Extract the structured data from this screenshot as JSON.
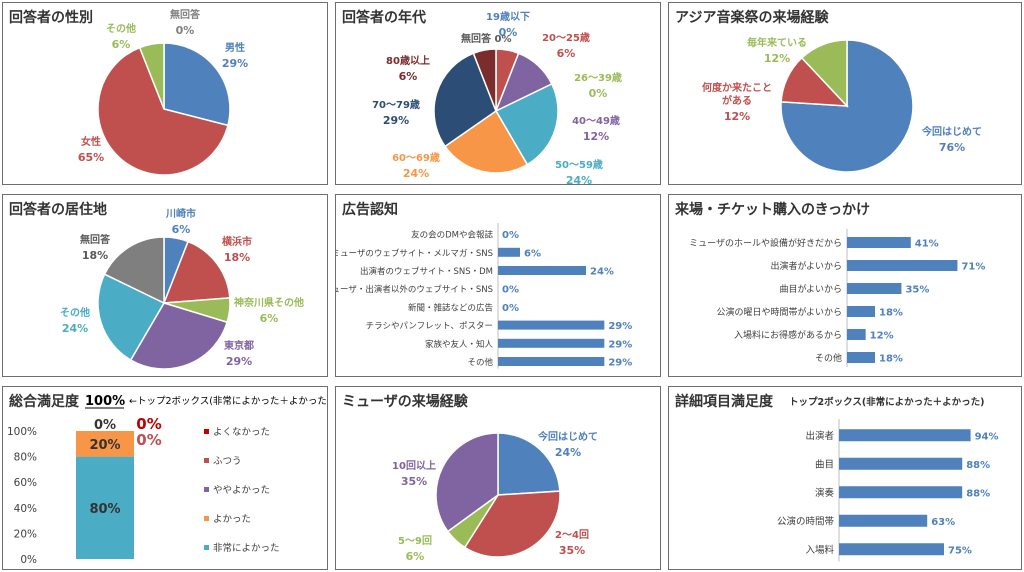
{
  "colors": {
    "blue": "#4f81bd",
    "red": "#c0504d",
    "green": "#9bbb59",
    "purple": "#8064a2",
    "teal": "#4bacc6",
    "orange": "#f79646",
    "navy": "#2c4d75",
    "maroon": "#7b2c2c",
    "gray": "#7f7f7f",
    "darkred": "#c00000"
  },
  "charts": [
    {
      "id": "gender",
      "type": "pie",
      "title": "回答者の性別",
      "slices": [
        {
          "label": "男性",
          "value": 29,
          "pct": "29%",
          "color": "#4f81bd"
        },
        {
          "label": "女性",
          "value": 65,
          "pct": "65%",
          "color": "#c0504d"
        },
        {
          "label": "その他",
          "value": 6,
          "pct": "6%",
          "color": "#9bbb59"
        },
        {
          "label": "無回答",
          "value": 0,
          "pct": "0%",
          "color": "#7f7f7f"
        }
      ]
    },
    {
      "id": "age",
      "type": "pie",
      "title": "回答者の年代",
      "slices": [
        {
          "label": "19歳以下",
          "value": 0,
          "pct": "0%",
          "color": "#4f81bd"
        },
        {
          "label": "20～25歳",
          "value": 6,
          "pct": "6%",
          "color": "#c0504d"
        },
        {
          "label": "26～39歳",
          "value": 0,
          "pct": "0%",
          "color": "#9bbb59"
        },
        {
          "label": "40～49歳",
          "value": 12,
          "pct": "12%",
          "color": "#8064a2"
        },
        {
          "label": "50～59歳",
          "value": 24,
          "pct": "24%",
          "color": "#4bacc6"
        },
        {
          "label": "60～69歳",
          "value": 24,
          "pct": "24%",
          "color": "#f79646"
        },
        {
          "label": "70～79歳",
          "value": 29,
          "pct": "29%",
          "color": "#2c4d75"
        },
        {
          "label": "80歳以上",
          "value": 6,
          "pct": "6%",
          "color": "#7b2c2c"
        },
        {
          "label": "無回答",
          "value": 0,
          "pct": "0%",
          "color": "#7f7f7f"
        }
      ]
    },
    {
      "id": "asia",
      "type": "pie",
      "title": "アジア音楽祭の来場経験",
      "slices": [
        {
          "label": "今回はじめて",
          "value": 76,
          "pct": "76%",
          "color": "#4f81bd"
        },
        {
          "label": "何度か来たことがある",
          "value": 12,
          "pct": "12%",
          "color": "#c0504d"
        },
        {
          "label": "毎年来ている",
          "value": 12,
          "pct": "12%",
          "color": "#9bbb59"
        }
      ]
    },
    {
      "id": "residence",
      "type": "pie",
      "title": "回答者の居住地",
      "slices": [
        {
          "label": "川崎市",
          "value": 6,
          "pct": "6%",
          "color": "#4f81bd"
        },
        {
          "label": "横浜市",
          "value": 18,
          "pct": "18%",
          "color": "#c0504d"
        },
        {
          "label": "神奈川県その他",
          "value": 6,
          "pct": "6%",
          "color": "#9bbb59"
        },
        {
          "label": "東京都",
          "value": 29,
          "pct": "29%",
          "color": "#8064a2"
        },
        {
          "label": "その他",
          "value": 24,
          "pct": "24%",
          "color": "#4bacc6"
        },
        {
          "label": "無回答",
          "value": 18,
          "pct": "18%",
          "color": "#7f7f7f"
        }
      ]
    },
    {
      "id": "ads",
      "type": "bar",
      "title": "広告認知",
      "categories": [
        "友の会のDMや会報誌",
        "ミューザのウェブサイト・メルマガ・SNS",
        "出演者のウェブサイト・SNS・DM",
        "ミューザ・出演者以外のウェブサイト・SNS",
        "新聞・雑誌などの広告",
        "チラシやパンフレット、ポスター",
        "家族や友人・知人",
        "その他"
      ],
      "values": [
        0,
        6,
        24,
        0,
        0,
        29,
        29,
        29
      ],
      "labels": [
        "0%",
        "6%",
        "24%",
        "0%",
        "0%",
        "29%",
        "29%",
        "29%"
      ],
      "xlim": [
        0,
        30
      ]
    },
    {
      "id": "reason",
      "type": "bar",
      "title": "来場・チケット購入のきっかけ",
      "categories": [
        "ミューザのホールや設備が好きだから",
        "出演者がよいから",
        "曲目がよいから",
        "公演の曜日や時間帯がよいから",
        "入場料にお得感があるから",
        "その他"
      ],
      "values": [
        41,
        71,
        35,
        18,
        12,
        18
      ],
      "labels": [
        "41%",
        "71%",
        "35%",
        "18%",
        "12%",
        "18%"
      ],
      "xlim": [
        0,
        72
      ]
    },
    {
      "id": "satisfaction",
      "type": "stacked-bar",
      "title": "総合満足度",
      "top2": "100%",
      "note": "←トップ2ボックス(非常によかった＋よかった)",
      "yticks": [
        "100%",
        "80%",
        "60%",
        "40%",
        "20%",
        "0%"
      ],
      "ylim": [
        0,
        100
      ],
      "segments": [
        {
          "label": "非常によかった",
          "value": 80,
          "pct": "80%",
          "color": "#4bacc6"
        },
        {
          "label": "よかった",
          "value": 20,
          "pct": "20%",
          "color": "#f79646"
        },
        {
          "label": "ややよかった",
          "value": 0,
          "pct": "0%",
          "color": "#8064a2"
        },
        {
          "label": "ふつう",
          "value": 0,
          "pct": "0%",
          "color": "#c0504d"
        },
        {
          "label": "よくなかった",
          "value": 0,
          "pct": "0%",
          "color": "#c00000"
        }
      ],
      "legend": [
        "よくなかった",
        "ふつう",
        "ややよかった",
        "よかった",
        "非常によかった"
      ]
    },
    {
      "id": "muza",
      "type": "pie",
      "title": "ミューザの来場経験",
      "slices": [
        {
          "label": "今回はじめて",
          "value": 24,
          "pct": "24%",
          "color": "#4f81bd"
        },
        {
          "label": "2～4回",
          "value": 35,
          "pct": "35%",
          "color": "#c0504d"
        },
        {
          "label": "5～9回",
          "value": 6,
          "pct": "6%",
          "color": "#9bbb59"
        },
        {
          "label": "10回以上",
          "value": 35,
          "pct": "35%",
          "color": "#8064a2"
        }
      ]
    },
    {
      "id": "detail",
      "type": "bar",
      "title": "詳細項目満足度",
      "subtitle": "トップ2ボックス(非常によかった＋よかった)",
      "categories": [
        "出演者",
        "曲目",
        "演奏",
        "公演の時間帯",
        "入場料"
      ],
      "values": [
        94,
        88,
        88,
        63,
        75
      ],
      "labels": [
        "94%",
        "88%",
        "88%",
        "63%",
        "75%"
      ],
      "xlim": [
        0,
        100
      ]
    }
  ]
}
